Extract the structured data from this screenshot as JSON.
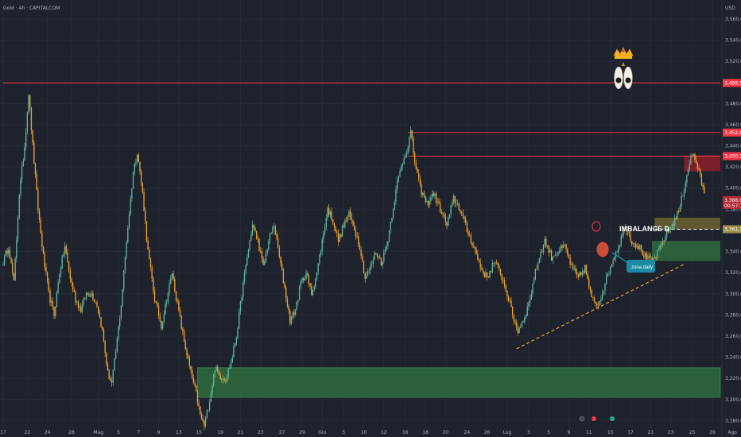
{
  "header": {
    "symbol": "Gold · 4h · CAPITALCOM",
    "currency": "USD"
  },
  "colors": {
    "background": "#1e222d",
    "bull": "#5fb8a3",
    "bear": "#f0a22e",
    "red_line": "#f23645",
    "supply_zone": "#8b1e2a",
    "demand_zone": "#2f6b3e",
    "imbalance_zone": "#6b6232",
    "trendline": "#f0a22e",
    "callout": "#1c8aa3"
  },
  "chart_data": {
    "type": "candlestick",
    "y_ticks": [
      "3,560,00",
      "3,540,00",
      "3,520,00",
      "3,500,00",
      "3,480,00",
      "3,460,00",
      "3,440,00",
      "3,420,00",
      "3,400,00",
      "3,380,00",
      "3,360,00",
      "3,340,00",
      "3,320,00",
      "3,300,00",
      "3,280,00",
      "3,260,00",
      "3,240,00",
      "3,220,00",
      "3,200,00",
      "3,180,00"
    ],
    "y_tick_values": [
      3560,
      3540,
      3520,
      3500,
      3480,
      3460,
      3440,
      3420,
      3400,
      3380,
      3360,
      3340,
      3320,
      3300,
      3280,
      3260,
      3240,
      3220,
      3200,
      3180
    ],
    "ylim": [
      3172,
      3578
    ],
    "x_labels": [
      "17",
      "22",
      "24",
      "28",
      "Mag",
      "5",
      "7",
      "9",
      "13",
      "15",
      "19",
      "21",
      "23",
      "27",
      "29",
      "Giu",
      "5",
      "10",
      "12",
      "16",
      "18",
      "20",
      "24",
      "26",
      "Lug",
      "3",
      "5",
      "9",
      "11",
      "15",
      "17",
      "21",
      "23",
      "25",
      "29",
      "Ago",
      "5",
      "7",
      "11",
      "13",
      "15"
    ],
    "x_label_indices": [
      0,
      18,
      33,
      51,
      71,
      86,
      101,
      116,
      131,
      146,
      162,
      177,
      192,
      208,
      223,
      238,
      254,
      269,
      284,
      300,
      315,
      330,
      346,
      361,
      376,
      392,
      407,
      422,
      437,
      453,
      468,
      483,
      498,
      514,
      529,
      544,
      559,
      574,
      589,
      605,
      620
    ],
    "n_bars": 535,
    "waypoints": [
      [
        0,
        3330
      ],
      [
        4,
        3345
      ],
      [
        8,
        3310
      ],
      [
        12,
        3395
      ],
      [
        16,
        3440
      ],
      [
        19,
        3490
      ],
      [
        22,
        3440
      ],
      [
        26,
        3380
      ],
      [
        30,
        3335
      ],
      [
        34,
        3300
      ],
      [
        38,
        3280
      ],
      [
        42,
        3320
      ],
      [
        46,
        3345
      ],
      [
        50,
        3315
      ],
      [
        54,
        3295
      ],
      [
        58,
        3285
      ],
      [
        62,
        3300
      ],
      [
        66,
        3300
      ],
      [
        70,
        3290
      ],
      [
        74,
        3265
      ],
      [
        78,
        3225
      ],
      [
        81,
        3215
      ],
      [
        84,
        3245
      ],
      [
        88,
        3290
      ],
      [
        92,
        3350
      ],
      [
        97,
        3415
      ],
      [
        100,
        3435
      ],
      [
        104,
        3395
      ],
      [
        108,
        3340
      ],
      [
        113,
        3295
      ],
      [
        118,
        3270
      ],
      [
        122,
        3295
      ],
      [
        126,
        3320
      ],
      [
        130,
        3290
      ],
      [
        135,
        3255
      ],
      [
        140,
        3225
      ],
      [
        144,
        3205
      ],
      [
        147,
        3185
      ],
      [
        150,
        3175
      ],
      [
        154,
        3200
      ],
      [
        158,
        3230
      ],
      [
        162,
        3222
      ],
      [
        166,
        3220
      ],
      [
        170,
        3235
      ],
      [
        174,
        3260
      ],
      [
        178,
        3300
      ],
      [
        182,
        3335
      ],
      [
        186,
        3365
      ],
      [
        190,
        3350
      ],
      [
        194,
        3325
      ],
      [
        198,
        3350
      ],
      [
        202,
        3365
      ],
      [
        206,
        3335
      ],
      [
        210,
        3305
      ],
      [
        214,
        3275
      ],
      [
        218,
        3285
      ],
      [
        222,
        3310
      ],
      [
        226,
        3320
      ],
      [
        230,
        3300
      ],
      [
        234,
        3320
      ],
      [
        238,
        3350
      ],
      [
        242,
        3380
      ],
      [
        246,
        3370
      ],
      [
        250,
        3350
      ],
      [
        254,
        3365
      ],
      [
        258,
        3375
      ],
      [
        262,
        3362
      ],
      [
        266,
        3345
      ],
      [
        270,
        3315
      ],
      [
        274,
        3325
      ],
      [
        278,
        3340
      ],
      [
        282,
        3330
      ],
      [
        286,
        3345
      ],
      [
        290,
        3375
      ],
      [
        294,
        3405
      ],
      [
        298,
        3425
      ],
      [
        302,
        3440
      ],
      [
        304,
        3453
      ],
      [
        307,
        3425
      ],
      [
        311,
        3400
      ],
      [
        316,
        3385
      ],
      [
        321,
        3395
      ],
      [
        326,
        3380
      ],
      [
        331,
        3365
      ],
      [
        336,
        3390
      ],
      [
        341,
        3380
      ],
      [
        346,
        3360
      ],
      [
        351,
        3345
      ],
      [
        356,
        3325
      ],
      [
        361,
        3315
      ],
      [
        366,
        3330
      ],
      [
        371,
        3320
      ],
      [
        376,
        3300
      ],
      [
        380,
        3280
      ],
      [
        384,
        3265
      ],
      [
        388,
        3275
      ],
      [
        392,
        3290
      ],
      [
        396,
        3315
      ],
      [
        400,
        3335
      ],
      [
        404,
        3350
      ],
      [
        409,
        3335
      ],
      [
        414,
        3340
      ],
      [
        419,
        3345
      ],
      [
        424,
        3325
      ],
      [
        429,
        3315
      ],
      [
        434,
        3325
      ],
      [
        439,
        3295
      ],
      [
        444,
        3290
      ],
      [
        449,
        3310
      ],
      [
        454,
        3330
      ],
      [
        459,
        3345
      ],
      [
        464,
        3365
      ],
      [
        469,
        3350
      ],
      [
        474,
        3345
      ],
      [
        479,
        3335
      ],
      [
        484,
        3330
      ],
      [
        489,
        3340
      ],
      [
        494,
        3355
      ],
      [
        499,
        3365
      ],
      [
        504,
        3378
      ],
      [
        508,
        3400
      ],
      [
        512,
        3425
      ],
      [
        515,
        3432
      ],
      [
        518,
        3420
      ],
      [
        521,
        3405
      ],
      [
        523,
        3395
      ]
    ],
    "horizontal_lines": [
      {
        "price": 3499.5,
        "label": "3,499,50",
        "x_start_index": 0
      },
      {
        "price": 3452.6,
        "label": "3,452,60",
        "x_start_index": 302
      },
      {
        "price": 3430.3,
        "label": "3,430,31",
        "x_start_index": 302
      }
    ],
    "current_price": {
      "value": 3388.63,
      "label": "3,388,63",
      "countdown": "00:57:18"
    },
    "dashed_level": {
      "price": 3361.1,
      "label": "3,361,11"
    },
    "zones": [
      {
        "name": "supply",
        "from": 3416,
        "to": 3431,
        "x_start_index": 508
      },
      {
        "name": "imbalance",
        "from": 3361,
        "to": 3372,
        "x_start_index": 486
      },
      {
        "name": "demand",
        "from": 3331,
        "to": 3350,
        "x_start_index": 484
      },
      {
        "name": "demand-low",
        "from": 3202,
        "to": 3230,
        "x_start_index": 145
      }
    ],
    "trendline": {
      "from": [
        383,
        3248
      ],
      "to": [
        508,
        3328
      ]
    },
    "annotations": {
      "imbalance_text": "IMBALANCE D",
      "zona_daily_text": "zona daily"
    }
  }
}
